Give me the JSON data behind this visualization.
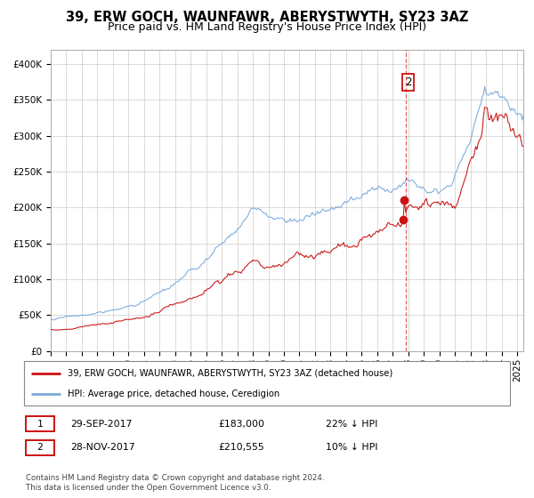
{
  "title": "39, ERW GOCH, WAUNFAWR, ABERYSTWYTH, SY23 3AZ",
  "subtitle": "Price paid vs. HM Land Registry's House Price Index (HPI)",
  "ylim": [
    0,
    420000
  ],
  "yticks": [
    0,
    50000,
    100000,
    150000,
    200000,
    250000,
    300000,
    350000,
    400000
  ],
  "ytick_labels": [
    "£0",
    "£50K",
    "£100K",
    "£150K",
    "£200K",
    "£250K",
    "£300K",
    "£350K",
    "£400K"
  ],
  "hpi_color": "#7aaadd",
  "price_color": "#cc1111",
  "point1_price": 183000,
  "point1_hpi_pct": 22,
  "point2_price": 210555,
  "point2_hpi_pct": 10,
  "legend_line1": "39, ERW GOCH, WAUNFAWR, ABERYSTWYTH, SY23 3AZ (detached house)",
  "legend_line2": "HPI: Average price, detached house, Ceredigion",
  "footer1": "Contains HM Land Registry data © Crown copyright and database right 2024.",
  "footer2": "This data is licensed under the Open Government Licence v3.0.",
  "table_row1": [
    "1",
    "29-SEP-2017",
    "£183,000",
    "22% ↓ HPI"
  ],
  "table_row2": [
    "2",
    "28-NOV-2017",
    "£210,555",
    "10% ↓ HPI"
  ],
  "bg_color": "#ffffff",
  "grid_color": "#cccccc",
  "title_fontsize": 10.5,
  "subtitle_fontsize": 9,
  "tick_fontsize": 7.5,
  "seed": 17
}
